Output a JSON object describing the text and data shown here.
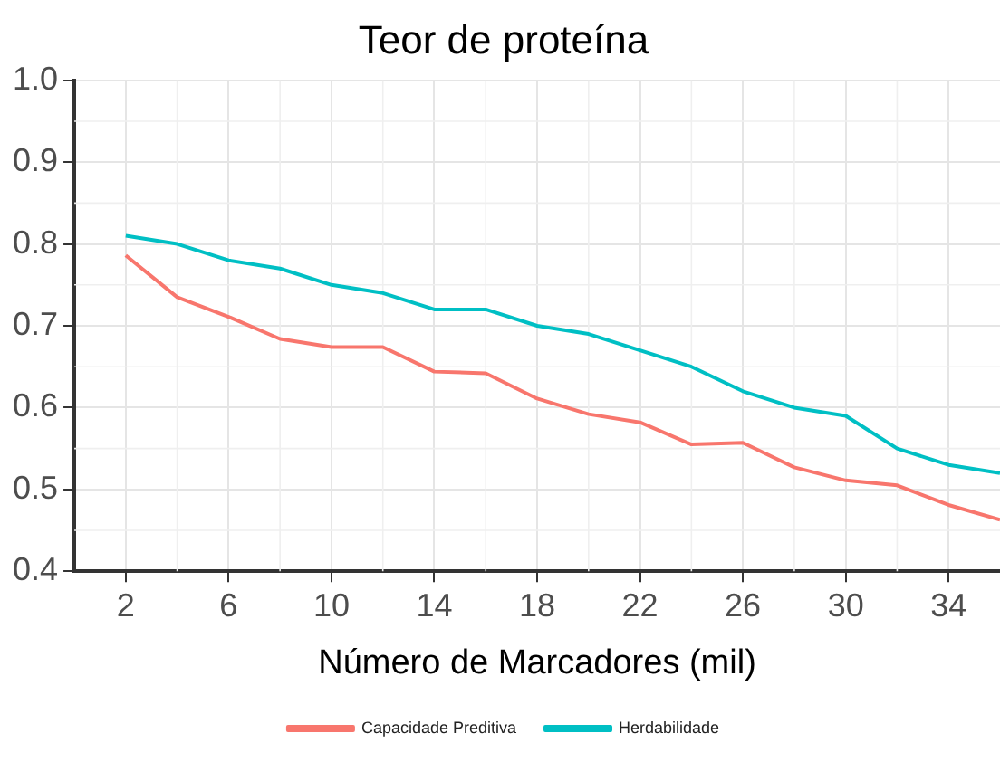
{
  "chart_data": {
    "type": "line",
    "title": "Teor de proteína",
    "xlabel": "Número de Marcadores (mil)",
    "x": [
      2,
      4,
      6,
      8,
      10,
      12,
      14,
      16,
      18,
      20,
      22,
      24,
      26,
      28,
      30,
      32,
      34,
      36
    ],
    "series": [
      {
        "name": "Capacidade Preditiva",
        "color": "#f8766d",
        "values": [
          0.786,
          0.735,
          0.711,
          0.684,
          0.674,
          0.674,
          0.644,
          0.642,
          0.611,
          0.592,
          0.582,
          0.555,
          0.557,
          0.527,
          0.511,
          0.505,
          0.481,
          0.463
        ]
      },
      {
        "name": "Herdabilidade",
        "color": "#00bfc4",
        "values": [
          0.81,
          0.8,
          0.78,
          0.77,
          0.75,
          0.74,
          0.72,
          0.72,
          0.7,
          0.69,
          0.67,
          0.65,
          0.62,
          0.6,
          0.59,
          0.55,
          0.53,
          0.52
        ]
      }
    ],
    "xlim": [
      0,
      36
    ],
    "xticks": [
      2,
      6,
      10,
      14,
      18,
      22,
      26,
      30,
      34
    ],
    "ylim": [
      0.4,
      1.0
    ],
    "yticks": [
      {
        "value": 0.4,
        "label": "0.4"
      },
      {
        "value": 0.5,
        "label": "0.5"
      },
      {
        "value": 0.6,
        "label": "0.6"
      },
      {
        "value": 0.7,
        "label": "0.7"
      },
      {
        "value": 0.8,
        "label": "0.8"
      },
      {
        "value": 0.9,
        "label": "0.9"
      },
      {
        "value": 1.0,
        "label": "1.0"
      }
    ],
    "grid": true,
    "legend": "bottom",
    "marker": "none",
    "line_style": "solid"
  }
}
